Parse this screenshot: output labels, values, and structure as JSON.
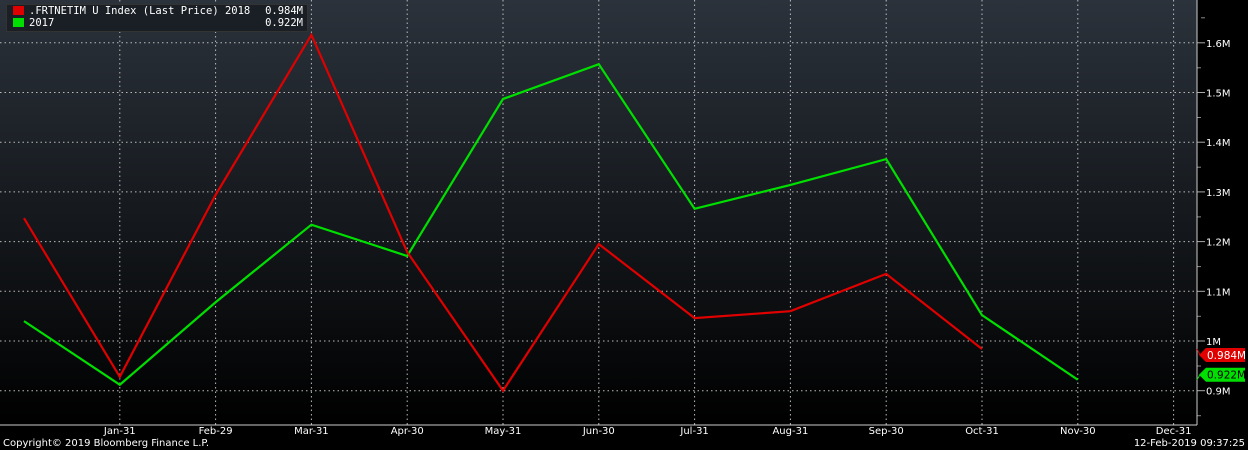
{
  "chart_data": {
    "type": "line",
    "x_ticks": [
      "Jan-31",
      "Feb-29",
      "Mar-31",
      "Apr-30",
      "May-31",
      "Jun-30",
      "Jul-31",
      "Aug-31",
      "Sep-30",
      "Oct-31",
      "Nov-30",
      "Dec-31"
    ],
    "y_ticks": [
      "0.9M",
      "1M",
      "1.1M",
      "1.2M",
      "1.3M",
      "1.4M",
      "1.5M",
      "1.6M"
    ],
    "ylim": [
      0.84,
      1.69
    ],
    "y_unit": "M",
    "grid": true,
    "legend_placement": "top-left",
    "series": [
      {
        "name": ".FRTNETIM U Index (Last Price) 2018",
        "last_value": "0.984M",
        "color": "#e00000",
        "values": [
          1.247,
          0.928,
          1.294,
          1.616,
          1.179,
          0.9,
          1.195,
          1.046,
          1.06,
          1.135,
          0.984
        ]
      },
      {
        "name": "2017",
        "last_value": "0.922M",
        "color": "#00e000",
        "values": [
          1.04,
          0.912,
          1.078,
          1.234,
          1.171,
          1.487,
          1.557,
          1.266,
          1.314,
          1.366,
          1.052,
          0.922
        ]
      }
    ]
  },
  "footer": {
    "copyright": "Copyright© 2019 Bloomberg Finance L.P.",
    "timestamp": "12-Feb-2019 09:37:25"
  }
}
